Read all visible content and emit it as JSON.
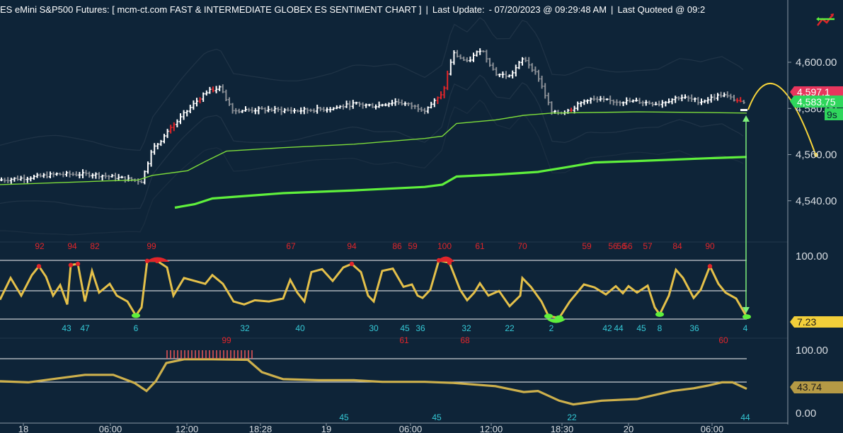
{
  "header": {
    "title": "ES eMini S&P500 Futures: [ mcm-ct.com FAST & INTERMEDIATE  GLOBEX ES SENTIMENT CHART ]",
    "last_update_label": "Last Update:",
    "last_update_value": "- 07/20/2023 @ 09:29:48 AM",
    "last_quoted_label": "Last Quoteed @ 09:2"
  },
  "chart_data": [
    {
      "type": "ohlc",
      "panel": "price",
      "y_ticks": [
        "4,600.00",
        "4,580.00",
        "4,560.00",
        "4,540.00"
      ],
      "y_tick_values": [
        4600,
        4580,
        4560,
        4540
      ],
      "ylim": [
        4526,
        4612
      ],
      "price_markers": {
        "top": "4,597.1",
        "last": "4,583.75",
        "countdown": "9s",
        "projection": "4,560.00"
      },
      "colors": {
        "up_bar": "#ffffff",
        "down_bar": "#8a8f96",
        "extreme_bar": "#e0252a",
        "fast_line": "#7ddc3a",
        "slow_line": "#5ff03c",
        "projection": "#f5d33a",
        "marker_top": "#e8365d",
        "marker_last": "#2fd65c"
      },
      "fast_ma": [
        [
          0,
          4547
        ],
        [
          50,
          4547.5
        ],
        [
          100,
          4548
        ],
        [
          150,
          4548.6
        ],
        [
          195,
          4549
        ],
        [
          215,
          4551
        ],
        [
          265,
          4553
        ],
        [
          290,
          4557
        ],
        [
          320,
          4561.5
        ],
        [
          400,
          4563
        ],
        [
          500,
          4564.5
        ],
        [
          600,
          4567
        ],
        [
          625,
          4568
        ],
        [
          645,
          4573.5
        ],
        [
          700,
          4575
        ],
        [
          740,
          4577
        ],
        [
          780,
          4578
        ],
        [
          900,
          4578.5
        ],
        [
          1000,
          4578.2
        ],
        [
          1055,
          4578
        ]
      ],
      "slow_ma": [
        [
          247,
          4537
        ],
        [
          275,
          4538.5
        ],
        [
          300,
          4541
        ],
        [
          400,
          4543.3
        ],
        [
          500,
          4544.5
        ],
        [
          600,
          4546
        ],
        [
          625,
          4547
        ],
        [
          645,
          4550.5
        ],
        [
          700,
          4551.3
        ],
        [
          760,
          4552.5
        ],
        [
          800,
          4554.5
        ],
        [
          840,
          4556.6
        ],
        [
          900,
          4557.2
        ],
        [
          1000,
          4558.4
        ],
        [
          1055,
          4559
        ]
      ],
      "series": [
        {
          "name": "price",
          "points": [
            [
              0,
              4549
            ],
            [
              40,
              4550
            ],
            [
              80,
              4551.5
            ],
            [
              130,
              4551.5
            ],
            [
              190,
              4549
            ],
            [
              200,
              4548.5
            ],
            [
              215,
              4562
            ],
            [
              235,
              4569
            ],
            [
              255,
              4576
            ],
            [
              290,
              4587
            ],
            [
              310,
              4589
            ],
            [
              330,
              4579
            ],
            [
              370,
              4579.5
            ],
            [
              420,
              4579
            ],
            [
              470,
              4580
            ],
            [
              500,
              4582
            ],
            [
              530,
              4581
            ],
            [
              560,
              4583
            ],
            [
              600,
              4579.5
            ],
            [
              625,
              4586
            ],
            [
              640,
              4604
            ],
            [
              660,
              4600
            ],
            [
              680,
              4606
            ],
            [
              700,
              4595
            ],
            [
              720,
              4594
            ],
            [
              740,
              4602
            ],
            [
              760,
              4594
            ],
            [
              780,
              4578
            ],
            [
              800,
              4578.5
            ],
            [
              830,
              4584
            ],
            [
              870,
              4583
            ],
            [
              900,
              4583
            ],
            [
              930,
              4582
            ],
            [
              960,
              4585
            ],
            [
              990,
              4583
            ],
            [
              1020,
              4586
            ],
            [
              1045,
              4583
            ],
            [
              1055,
              4581
            ]
          ]
        }
      ],
      "x_ticks": [
        "18",
        "06:00",
        "12:00",
        "18:28",
        "19",
        "06:00",
        "12:00",
        "18:30",
        "20",
        "06:00"
      ]
    },
    {
      "type": "line",
      "panel": "fast_sentiment",
      "y_ticks": [
        "100.00"
      ],
      "ylim": [
        0,
        100
      ],
      "value_marker": "7.23",
      "colors": {
        "line": "#e4c04a",
        "high_zone": "#e0252a",
        "low_zone": "#5ff03c",
        "peak_label": "#e0252a",
        "trough_label": "#35c9d6"
      },
      "series": [
        {
          "name": "fast",
          "points": [
            [
              0,
              33
            ],
            [
              15,
              70
            ],
            [
              30,
              40
            ],
            [
              45,
              75
            ],
            [
              55,
              90
            ],
            [
              65,
              72
            ],
            [
              75,
              40
            ],
            [
              85,
              58
            ],
            [
              95,
              25
            ],
            [
              100,
              92
            ],
            [
              110,
              94
            ],
            [
              120,
              30
            ],
            [
              130,
              82
            ],
            [
              140,
              45
            ],
            [
              155,
              60
            ],
            [
              165,
              40
            ],
            [
              180,
              30
            ],
            [
              192,
              6
            ],
            [
              200,
              20
            ],
            [
              208,
              99
            ],
            [
              222,
              99
            ],
            [
              236,
              88
            ],
            [
              245,
              40
            ],
            [
              260,
              70
            ],
            [
              290,
              60
            ],
            [
              300,
              75
            ],
            [
              315,
              60
            ],
            [
              330,
              30
            ],
            [
              345,
              25
            ],
            [
              360,
              32
            ],
            [
              380,
              30
            ],
            [
              400,
              35
            ],
            [
              410,
              67
            ],
            [
              420,
              45
            ],
            [
              430,
              30
            ],
            [
              440,
              80
            ],
            [
              455,
              85
            ],
            [
              470,
              65
            ],
            [
              485,
              88
            ],
            [
              497,
              94
            ],
            [
              510,
              80
            ],
            [
              520,
              40
            ],
            [
              528,
              30
            ],
            [
              540,
              82
            ],
            [
              555,
              86
            ],
            [
              570,
              55
            ],
            [
              582,
              59
            ],
            [
              590,
              40
            ],
            [
              597,
              36
            ],
            [
              608,
              50
            ],
            [
              620,
              100
            ],
            [
              635,
              96
            ],
            [
              650,
              50
            ],
            [
              660,
              32
            ],
            [
              670,
              45
            ],
            [
              678,
              61
            ],
            [
              690,
              40
            ],
            [
              705,
              48
            ],
            [
              720,
              22
            ],
            [
              735,
              40
            ],
            [
              738,
              70
            ],
            [
              750,
              55
            ],
            [
              765,
              30
            ],
            [
              775,
              5
            ],
            [
              790,
              2
            ],
            [
              805,
              30
            ],
            [
              825,
              59
            ],
            [
              840,
              54
            ],
            [
              856,
              42
            ],
            [
              870,
              56
            ],
            [
              880,
              44
            ],
            [
              888,
              56
            ],
            [
              900,
              45
            ],
            [
              915,
              57
            ],
            [
              925,
              20
            ],
            [
              932,
              8
            ],
            [
              945,
              40
            ],
            [
              955,
              84
            ],
            [
              965,
              70
            ],
            [
              980,
              36
            ],
            [
              990,
              50
            ],
            [
              1003,
              90
            ],
            [
              1015,
              60
            ],
            [
              1025,
              45
            ],
            [
              1040,
              35
            ],
            [
              1055,
              4
            ]
          ]
        }
      ],
      "peak_labels": [
        "92",
        "94",
        "82",
        "99",
        "67",
        "94",
        "86",
        "59",
        "100",
        "61",
        "70",
        "59",
        "56",
        "56",
        "56",
        "57",
        "84",
        "90"
      ],
      "trough_labels": [
        "43",
        "47",
        "6",
        "32",
        "40",
        "30",
        "45",
        "36",
        "32",
        "22",
        "2",
        "42",
        "44",
        "45",
        "8",
        "36",
        "4"
      ]
    },
    {
      "type": "line",
      "panel": "intermediate_sentiment",
      "y_ticks": [
        "100.00",
        "0.00"
      ],
      "ylim": [
        0,
        100
      ],
      "value_marker": "43.74",
      "colors": {
        "line": "#cdb04c",
        "high_zone": "#e0252a",
        "peak_label": "#e0252a",
        "trough_label": "#35c9d6"
      },
      "series": [
        {
          "name": "intermediate",
          "points": [
            [
              0,
              58
            ],
            [
              40,
              56
            ],
            [
              80,
              63
            ],
            [
              120,
              70
            ],
            [
              160,
              70
            ],
            [
              190,
              55
            ],
            [
              207,
              40
            ],
            [
              220,
              58
            ],
            [
              235,
              92
            ],
            [
              260,
              99
            ],
            [
              300,
              99
            ],
            [
              350,
              98
            ],
            [
              370,
              75
            ],
            [
              400,
              62
            ],
            [
              450,
              60
            ],
            [
              500,
              60
            ],
            [
              540,
              57
            ],
            [
              600,
              57
            ],
            [
              640,
              55
            ],
            [
              700,
              49
            ],
            [
              740,
              38
            ],
            [
              760,
              40
            ],
            [
              790,
              22
            ],
            [
              810,
              15
            ],
            [
              850,
              22
            ],
            [
              900,
              25
            ],
            [
              950,
              40
            ],
            [
              980,
              45
            ],
            [
              1000,
              50
            ],
            [
              1020,
              56
            ],
            [
              1035,
              56
            ],
            [
              1055,
              44
            ]
          ]
        }
      ],
      "peak_labels": [
        "99",
        "61",
        "68",
        "60"
      ],
      "trough_labels": [
        "45",
        "45",
        "22",
        "44"
      ]
    }
  ]
}
